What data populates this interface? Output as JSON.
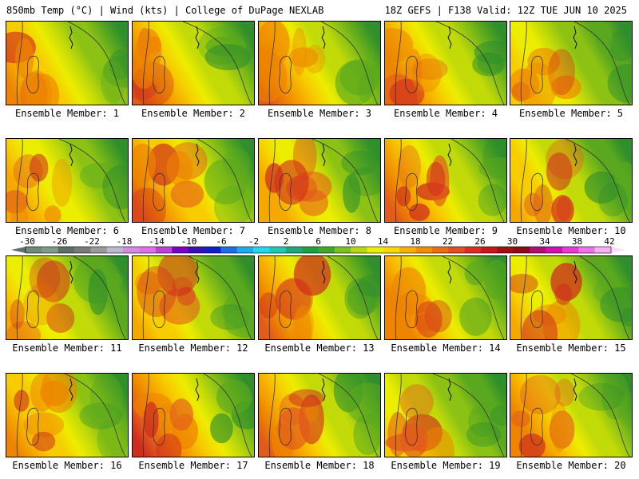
{
  "header": {
    "left": "850mb Temp (°C) | Wind (kts) | College of DuPage NEXLAB",
    "right": "18Z GEFS | F138 Valid: 12Z TUE JUN 10 2025"
  },
  "panels": [
    {
      "label": "Ensemble Member: 1",
      "hot": 0.75
    },
    {
      "label": "Ensemble Member: 2",
      "hot": 0.85
    },
    {
      "label": "Ensemble Member: 3",
      "hot": 0.85
    },
    {
      "label": "Ensemble Member: 4",
      "hot": 0.8
    },
    {
      "label": "Ensemble Member: 5",
      "hot": 0.55
    },
    {
      "label": "Ensemble Member: 6",
      "hot": 0.7
    },
    {
      "label": "Ensemble Member: 7",
      "hot": 0.9
    },
    {
      "label": "Ensemble Member: 8",
      "hot": 0.7
    },
    {
      "label": "Ensemble Member: 9",
      "hot": 0.85
    },
    {
      "label": "Ensemble Member: 10",
      "hot": 0.65
    },
    {
      "label": "Ensemble Member: 11",
      "hot": 0.6
    },
    {
      "label": "Ensemble Member: 12",
      "hot": 0.65
    },
    {
      "label": "Ensemble Member: 13",
      "hot": 0.85
    },
    {
      "label": "Ensemble Member: 14",
      "hot": 0.8
    },
    {
      "label": "Ensemble Member: 15",
      "hot": 0.6
    },
    {
      "label": "Ensemble Member: 16",
      "hot": 0.75
    },
    {
      "label": "Ensemble Member: 17",
      "hot": 0.95
    },
    {
      "label": "Ensemble Member: 18",
      "hot": 0.85
    },
    {
      "label": "Ensemble Member: 19",
      "hot": 0.5
    },
    {
      "label": "Ensemble Member: 20",
      "hot": 0.8
    }
  ],
  "colorbar": {
    "ticks": [
      "-30",
      "-26",
      "-22",
      "-18",
      "-14",
      "-10",
      "-6",
      "-2",
      "2",
      "6",
      "10",
      "14",
      "18",
      "22",
      "26",
      "30",
      "34",
      "38",
      "42"
    ],
    "colors": [
      "#6e8a78",
      "#7f9a88",
      "#5e6e66",
      "#7a7a7a",
      "#9a9a9a",
      "#b9b9ce",
      "#d28be0",
      "#e070e8",
      "#c040d8",
      "#7a00c8",
      "#3a10b0",
      "#1020c8",
      "#1e6ee8",
      "#20a8f0",
      "#20d8f0",
      "#20c8b0",
      "#20a878",
      "#20a040",
      "#40a828",
      "#7ac020",
      "#b8d810",
      "#e8f000",
      "#f8d800",
      "#f8b000",
      "#f09000",
      "#e87010",
      "#e05020",
      "#d83020",
      "#c81818",
      "#a01010",
      "#880c18",
      "#b01070",
      "#d010b0",
      "#e838d8",
      "#f070e8",
      "#f8b0f0"
    ],
    "field": [
      "#2f8f2b",
      "#5aa81f",
      "#8cc214",
      "#c1da08",
      "#eded00",
      "#f7cd00",
      "#f5a800",
      "#ee8400",
      "#e25a1c",
      "#cf2c1e"
    ]
  }
}
